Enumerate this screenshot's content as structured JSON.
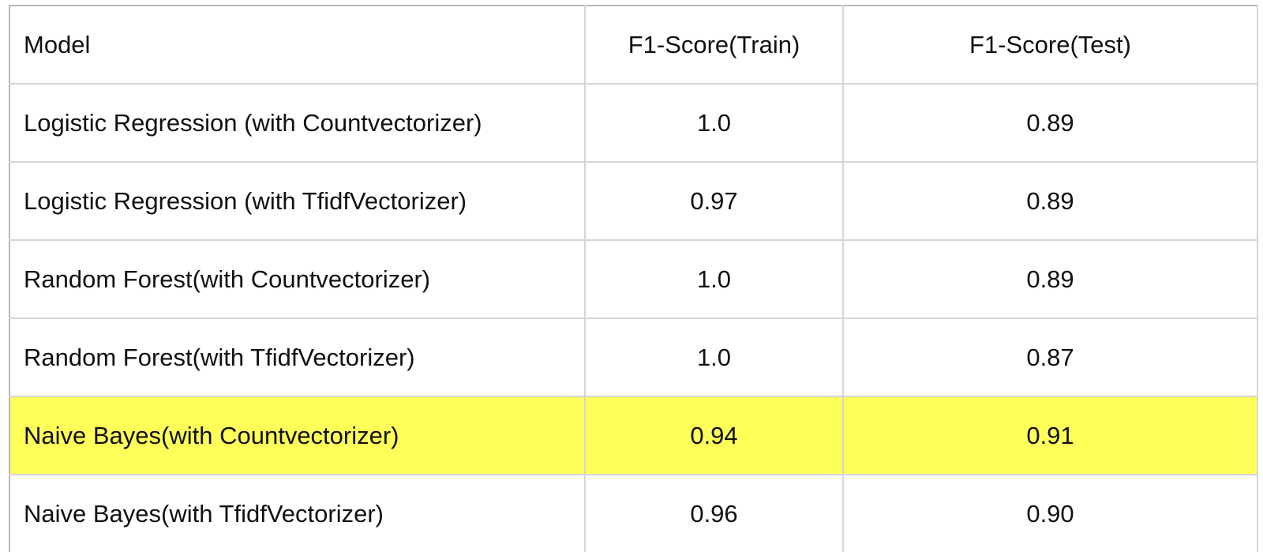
{
  "chart_data": {
    "type": "table",
    "columns": [
      "Model",
      "F1-Score(Train)",
      "F1-Score(Test)"
    ],
    "rows": [
      {
        "model": "Logistic Regression (with Countvectorizer)",
        "train": "1.0",
        "test": "0.89"
      },
      {
        "model": "Logistic Regression (with TfidfVectorizer)",
        "train": "0.97",
        "test": "0.89"
      },
      {
        "model": "Random Forest(with Countvectorizer)",
        "train": "1.0",
        "test": "0.89"
      },
      {
        "model": "Random Forest(with TfidfVectorizer)",
        "train": "1.0",
        "test": "0.87"
      },
      {
        "model": "Naive Bayes(with Countvectorizer)",
        "train": "0.94",
        "test": "0.91"
      },
      {
        "model": "Naive Bayes(with TfidfVectorizer)",
        "train": "0.96",
        "test": "0.90"
      }
    ],
    "highlighted_row": 4,
    "highlight_color": "#ffff59"
  }
}
